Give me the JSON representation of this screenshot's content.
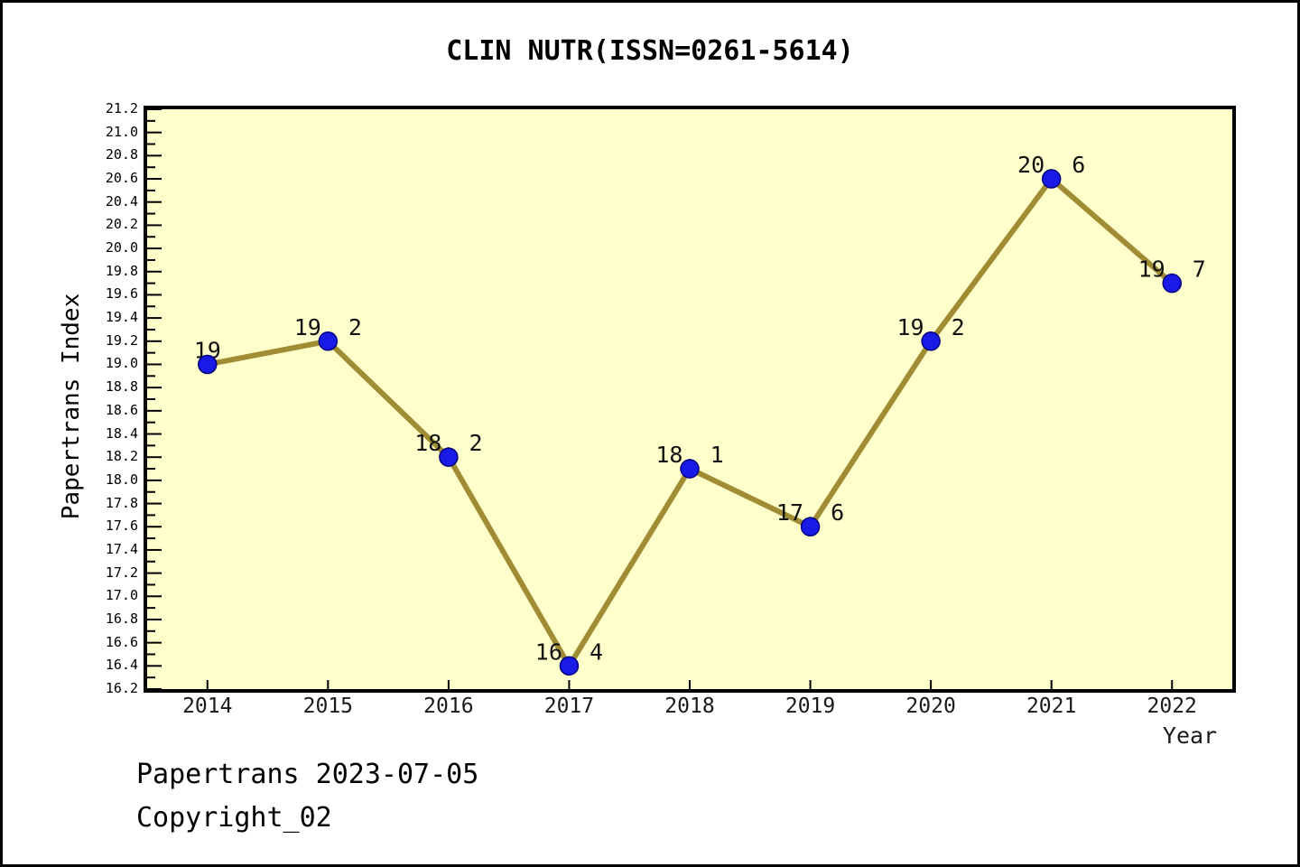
{
  "title": "CLIN NUTR(ISSN=0261-5614)",
  "footer": {
    "line1": "Papertrans 2023-07-05",
    "line2": "Copyright_02"
  },
  "chart_data": {
    "type": "line",
    "title": "CLIN NUTR(ISSN=0261-5614)",
    "xlabel": "Year",
    "ylabel": "Papertrans Index",
    "x": [
      2014,
      2015,
      2016,
      2017,
      2018,
      2019,
      2020,
      2021,
      2022
    ],
    "x_tick_labels": [
      "2014",
      "2015",
      "2016",
      "2017",
      "2018",
      "2019",
      "2020",
      "2021",
      "2022"
    ],
    "series": [
      {
        "name": "Papertrans Index",
        "values": [
          19,
          19.2,
          18.2,
          16.4,
          18.1,
          17.6,
          19.2,
          20.6,
          19.7
        ]
      }
    ],
    "point_labels": [
      "19",
      "19. 2",
      "18. 2",
      "16. 4",
      "18. 1",
      "17. 6",
      "19. 2",
      "20. 6",
      "19. 7"
    ],
    "xlim": [
      2013.5,
      2022.5
    ],
    "ylim": [
      16.2,
      21.2
    ],
    "y_tick_step": 0.2,
    "y_minor_tick_step": 0.1,
    "grid": false,
    "legend": "none",
    "colors": {
      "plot_bg": "#FFFFCC",
      "page_bg": "#FFFFFF",
      "line": "#A08C32",
      "marker_fill": "#1A1AE6",
      "marker_edge": "#000080",
      "axis": "#000000",
      "tick_text": "#000000",
      "label_text": "#111111"
    },
    "marker_radius": 10,
    "line_width": 6
  }
}
